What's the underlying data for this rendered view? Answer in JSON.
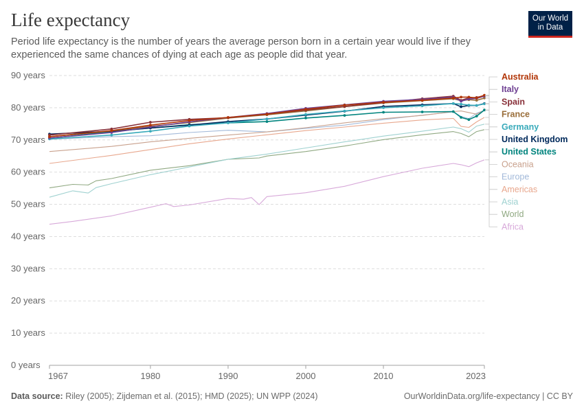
{
  "header": {
    "title": "Life expectancy",
    "subtitle": "Period life expectancy is the number of years the average person born in a certain year would live if they experienced the same chances of dying at each age as people did that year.",
    "logo_line1": "Our World",
    "logo_line2": "in Data"
  },
  "footer": {
    "source_label": "Data source:",
    "source_text": "Riley (2005); Zijdeman et al. (2015); HMD (2025); UN WPP (2024)",
    "url_text": "OurWorldinData.org/life-expectancy | CC BY"
  },
  "colors": {
    "Australia": "#b13507",
    "Italy": "#6d3e91",
    "Spain": "#883039",
    "France": "#996d39",
    "Germany": "#38aaba",
    "United Kingdom": "#00295b",
    "United States": "#00847e",
    "Oceania": "#c8a08c",
    "Europe": "#a2b9d9",
    "Americas": "#e8a78d",
    "Asia": "#9ed1d0",
    "World": "#8fa881",
    "Africa": "#d7a8d9"
  },
  "chart_data": {
    "type": "line",
    "title": "Life expectancy",
    "xlabel": "",
    "ylabel": "",
    "xlim": [
      1967,
      2023
    ],
    "ylim": [
      0,
      90
    ],
    "y_ticks": [
      0,
      10,
      20,
      30,
      40,
      50,
      60,
      70,
      80,
      90
    ],
    "y_tick_labels": [
      "0 years",
      "10 years",
      "20 years",
      "30 years",
      "40 years",
      "50 years",
      "60 years",
      "70 years",
      "80 years",
      "90 years"
    ],
    "x_ticks": [
      1967,
      1980,
      1990,
      2000,
      2010,
      2023
    ],
    "x_tick_labels": [
      "1967",
      "1980",
      "1990",
      "2000",
      "2010",
      "2023"
    ],
    "grid": true,
    "legend_position": "right",
    "series": [
      {
        "name": "Australia",
        "markers": true,
        "points": [
          [
            1967,
            71.0
          ],
          [
            1975,
            72.9
          ],
          [
            1980,
            74.6
          ],
          [
            1985,
            76.0
          ],
          [
            1990,
            77.0
          ],
          [
            1995,
            78.0
          ],
          [
            2000,
            79.5
          ],
          [
            2005,
            80.8
          ],
          [
            2010,
            81.7
          ],
          [
            2015,
            82.3
          ],
          [
            2019,
            83.0
          ],
          [
            2020,
            83.3
          ],
          [
            2021,
            83.3
          ],
          [
            2022,
            83.0
          ],
          [
            2023,
            83.9
          ]
        ]
      },
      {
        "name": "Italy",
        "markers": true,
        "points": [
          [
            1967,
            70.6
          ],
          [
            1975,
            72.3
          ],
          [
            1980,
            74.0
          ],
          [
            1985,
            75.6
          ],
          [
            1990,
            77.0
          ],
          [
            1995,
            78.2
          ],
          [
            2000,
            79.8
          ],
          [
            2005,
            80.9
          ],
          [
            2010,
            82.0
          ],
          [
            2015,
            82.6
          ],
          [
            2019,
            83.3
          ],
          [
            2020,
            82.0
          ],
          [
            2021,
            82.7
          ],
          [
            2022,
            82.9
          ],
          [
            2023,
            83.6
          ]
        ]
      },
      {
        "name": "Spain",
        "markers": true,
        "points": [
          [
            1967,
            71.5
          ],
          [
            1975,
            73.4
          ],
          [
            1980,
            75.5
          ],
          [
            1985,
            76.4
          ],
          [
            1990,
            76.9
          ],
          [
            1995,
            78.0
          ],
          [
            2000,
            79.3
          ],
          [
            2005,
            80.4
          ],
          [
            2010,
            81.6
          ],
          [
            2015,
            82.8
          ],
          [
            2019,
            83.6
          ],
          [
            2020,
            82.3
          ],
          [
            2021,
            83.1
          ],
          [
            2022,
            83.2
          ],
          [
            2023,
            83.8
          ]
        ]
      },
      {
        "name": "France",
        "markers": true,
        "points": [
          [
            1967,
            71.0
          ],
          [
            1975,
            72.8
          ],
          [
            1980,
            74.2
          ],
          [
            1985,
            75.4
          ],
          [
            1990,
            76.8
          ],
          [
            1995,
            77.8
          ],
          [
            2000,
            79.0
          ],
          [
            2005,
            80.3
          ],
          [
            2010,
            81.5
          ],
          [
            2015,
            82.2
          ],
          [
            2019,
            82.8
          ],
          [
            2020,
            82.2
          ],
          [
            2021,
            82.5
          ],
          [
            2022,
            82.3
          ],
          [
            2023,
            83.0
          ]
        ]
      },
      {
        "name": "Germany",
        "markers": true,
        "points": [
          [
            1967,
            70.3
          ],
          [
            1975,
            71.5
          ],
          [
            1980,
            72.7
          ],
          [
            1985,
            74.3
          ],
          [
            1990,
            75.3
          ],
          [
            1995,
            76.5
          ],
          [
            2000,
            77.9
          ],
          [
            2005,
            79.0
          ],
          [
            2010,
            80.0
          ],
          [
            2015,
            80.6
          ],
          [
            2019,
            81.3
          ],
          [
            2020,
            81.1
          ],
          [
            2021,
            80.8
          ],
          [
            2022,
            80.7
          ],
          [
            2023,
            81.2
          ]
        ]
      },
      {
        "name": "United Kingdom",
        "markers": true,
        "points": [
          [
            1967,
            71.8
          ],
          [
            1975,
            72.7
          ],
          [
            1980,
            73.7
          ],
          [
            1985,
            74.6
          ],
          [
            1990,
            75.7
          ],
          [
            1995,
            76.5
          ],
          [
            2000,
            77.7
          ],
          [
            2005,
            78.9
          ],
          [
            2010,
            80.4
          ],
          [
            2015,
            80.9
          ],
          [
            2019,
            81.3
          ],
          [
            2020,
            80.3
          ],
          [
            2021,
            80.7
          ],
          [
            2022,
            80.7
          ],
          [
            2023,
            81.3
          ]
        ]
      },
      {
        "name": "United States",
        "markers": true,
        "points": [
          [
            1967,
            70.5
          ],
          [
            1975,
            72.6
          ],
          [
            1980,
            73.7
          ],
          [
            1985,
            74.7
          ],
          [
            1990,
            75.3
          ],
          [
            1995,
            75.7
          ],
          [
            2000,
            76.8
          ],
          [
            2005,
            77.6
          ],
          [
            2010,
            78.6
          ],
          [
            2015,
            78.7
          ],
          [
            2019,
            78.8
          ],
          [
            2020,
            77.0
          ],
          [
            2021,
            76.3
          ],
          [
            2022,
            77.4
          ],
          [
            2023,
            79.3
          ]
        ]
      },
      {
        "name": "Oceania",
        "markers": false,
        "points": [
          [
            1967,
            66.4
          ],
          [
            1975,
            68.0
          ],
          [
            1980,
            69.4
          ],
          [
            1985,
            70.5
          ],
          [
            1990,
            71.5
          ],
          [
            1995,
            72.5
          ],
          [
            2000,
            73.8
          ],
          [
            2005,
            75.3
          ],
          [
            2010,
            76.6
          ],
          [
            2015,
            77.6
          ],
          [
            2019,
            78.8
          ],
          [
            2020,
            79.0
          ],
          [
            2021,
            78.5
          ],
          [
            2022,
            78.0
          ],
          [
            2023,
            79.2
          ]
        ]
      },
      {
        "name": "Europe",
        "markers": false,
        "points": [
          [
            1967,
            70.2
          ],
          [
            1975,
            71.0
          ],
          [
            1980,
            71.3
          ],
          [
            1985,
            72.3
          ],
          [
            1990,
            73.0
          ],
          [
            1995,
            72.5
          ],
          [
            2000,
            73.6
          ],
          [
            2005,
            74.6
          ],
          [
            2010,
            76.3
          ],
          [
            2015,
            77.7
          ],
          [
            2019,
            78.7
          ],
          [
            2020,
            77.3
          ],
          [
            2021,
            76.6
          ],
          [
            2022,
            78.3
          ],
          [
            2023,
            79.2
          ]
        ]
      },
      {
        "name": "Americas",
        "markers": false,
        "points": [
          [
            1967,
            62.7
          ],
          [
            1975,
            65.2
          ],
          [
            1980,
            67.0
          ],
          [
            1985,
            68.8
          ],
          [
            1990,
            70.3
          ],
          [
            1995,
            71.6
          ],
          [
            2000,
            72.9
          ],
          [
            2005,
            74.0
          ],
          [
            2010,
            75.2
          ],
          [
            2015,
            76.2
          ],
          [
            2019,
            76.7
          ],
          [
            2020,
            74.2
          ],
          [
            2021,
            73.9
          ],
          [
            2022,
            75.6
          ],
          [
            2023,
            77.0
          ]
        ]
      },
      {
        "name": "Asia",
        "markers": false,
        "points": [
          [
            1967,
            52.2
          ],
          [
            1970,
            54.2
          ],
          [
            1972,
            53.5
          ],
          [
            1973,
            55.2
          ],
          [
            1975,
            56.4
          ],
          [
            1980,
            59.2
          ],
          [
            1985,
            61.6
          ],
          [
            1990,
            64.0
          ],
          [
            1995,
            65.6
          ],
          [
            2000,
            67.5
          ],
          [
            2005,
            69.4
          ],
          [
            2010,
            71.2
          ],
          [
            2015,
            72.7
          ],
          [
            2019,
            74.0
          ],
          [
            2020,
            73.5
          ],
          [
            2021,
            72.4
          ],
          [
            2022,
            74.3
          ],
          [
            2023,
            74.9
          ]
        ]
      },
      {
        "name": "World",
        "markers": false,
        "points": [
          [
            1967,
            55.1
          ],
          [
            1970,
            56.2
          ],
          [
            1972,
            56.0
          ],
          [
            1973,
            57.3
          ],
          [
            1975,
            58.0
          ],
          [
            1980,
            60.6
          ],
          [
            1985,
            62.0
          ],
          [
            1990,
            64.0
          ],
          [
            1994,
            64.4
          ],
          [
            1995,
            65.0
          ],
          [
            2000,
            66.4
          ],
          [
            2005,
            68.1
          ],
          [
            2010,
            70.1
          ],
          [
            2015,
            71.6
          ],
          [
            2019,
            72.6
          ],
          [
            2020,
            72.0
          ],
          [
            2021,
            71.0
          ],
          [
            2022,
            72.6
          ],
          [
            2023,
            73.2
          ]
        ]
      },
      {
        "name": "Africa",
        "markers": false,
        "points": [
          [
            1967,
            43.8
          ],
          [
            1970,
            44.7
          ],
          [
            1975,
            46.4
          ],
          [
            1980,
            49.1
          ],
          [
            1982,
            50.2
          ],
          [
            1983,
            49.3
          ],
          [
            1985,
            49.8
          ],
          [
            1990,
            51.8
          ],
          [
            1992,
            51.6
          ],
          [
            1993,
            52.1
          ],
          [
            1994,
            49.9
          ],
          [
            1995,
            52.4
          ],
          [
            2000,
            53.6
          ],
          [
            2005,
            55.6
          ],
          [
            2010,
            58.6
          ],
          [
            2015,
            61.2
          ],
          [
            2019,
            62.7
          ],
          [
            2020,
            62.3
          ],
          [
            2021,
            61.7
          ],
          [
            2022,
            62.9
          ],
          [
            2023,
            63.8
          ]
        ]
      }
    ]
  }
}
